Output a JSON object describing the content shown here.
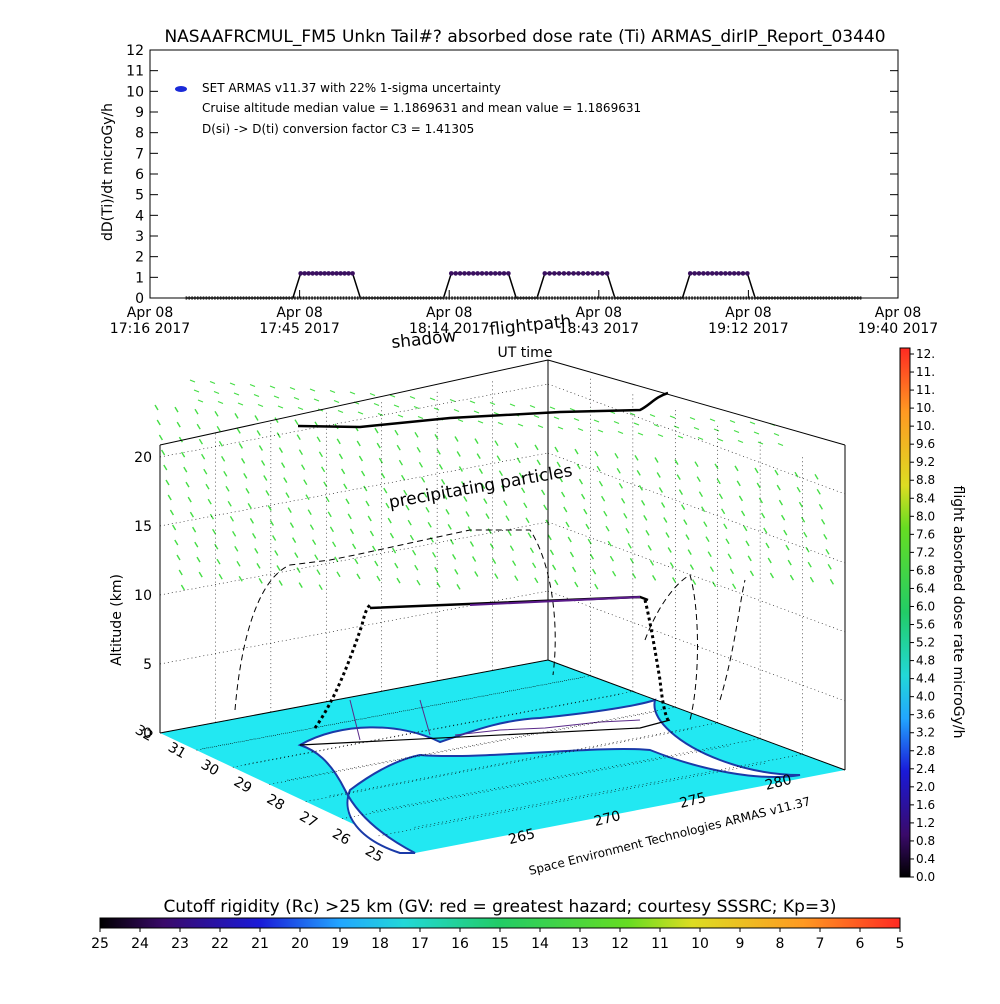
{
  "title": "NASAAFRCMUL_FM5 Unkn Tail#? absorbed dose rate (Ti) ARMAS_dirIP_Report_03440",
  "chart_data": [
    {
      "type": "line",
      "ylabel": "dD(Ti)/dt microGy/h",
      "xlabel": "UT time",
      "ylim": [
        0,
        12
      ],
      "yticks": [
        "0",
        "1",
        "2",
        "3",
        "4",
        "5",
        "6",
        "7",
        "8",
        "9",
        "10",
        "11",
        "12"
      ],
      "xtick_labels": [
        [
          "Apr 08",
          "17:16 2017"
        ],
        [
          "Apr 08",
          "17:45 2017"
        ],
        [
          "Apr 08",
          "18:14 2017"
        ],
        [
          "Apr 08",
          "18:43 2017"
        ],
        [
          "Apr 08",
          "19:12 2017"
        ],
        [
          "Apr 08",
          "19:40 2017"
        ]
      ],
      "xlim_minutes_after_1716": [
        0,
        144
      ],
      "legend": [
        "SET ARMAS v11.37 with 22% 1-sigma uncertainty",
        "Cruise altitude median value = 1.1869631 and mean value = 1.1869631",
        "D(si) -> D(ti) conversion factor C3 = 1.41305"
      ],
      "series": [
        {
          "name": "SET ARMAS v11.37 with 22% 1-sigma uncertainty",
          "color": "#3a1060",
          "baseline": 0,
          "elevated_value": 1.19,
          "start_minute": 7,
          "end_minute": 137,
          "elevated_segments_minutes": [
            [
              29,
              39
            ],
            [
              58,
              69
            ],
            [
              76,
              88
            ],
            [
              104,
              115
            ]
          ]
        }
      ]
    },
    {
      "type": "3d-trajectory",
      "zlabel": "Altitude (km)",
      "zticks": [
        "0",
        "5",
        "10",
        "15",
        "20"
      ],
      "lat_ticks": [
        "32",
        "31",
        "30",
        "29",
        "28",
        "27",
        "26",
        "25"
      ],
      "lon_ticks": [
        "265",
        "270",
        "275",
        "280"
      ],
      "annotations": [
        "flightpath",
        "shadow",
        "precipitating particles"
      ],
      "footer": "Space Environment Technologies ARMAS v11.37",
      "cruise_altitude_km": 10
    },
    {
      "type": "colorbar",
      "label": "flight absorbed dose rate microGy/h",
      "ticks": [
        "12.",
        "11.",
        "11.",
        "10.",
        "10.",
        "9.6",
        "9.2",
        "8.8",
        "8.4",
        "8.0",
        "7.6",
        "7.2",
        "6.8",
        "6.4",
        "6.0",
        "5.6",
        "5.2",
        "4.8",
        "4.4",
        "4.0",
        "3.6",
        "3.2",
        "2.8",
        "2.4",
        "2.0",
        "1.6",
        "1.2",
        "0.8",
        "0.4",
        "0.0"
      ]
    },
    {
      "type": "colorbar",
      "label": "Cutoff rigidity (Rc) >25 km (GV: red = greatest hazard; courtesy SSSRC; Kp=3)",
      "ticks": [
        "25",
        "24",
        "23",
        "22",
        "21",
        "20",
        "19",
        "18",
        "17",
        "16",
        "15",
        "14",
        "13",
        "12",
        "11",
        "10",
        "9",
        "8",
        "7",
        "6",
        "5"
      ]
    }
  ],
  "colors": {
    "flight_dose_cmap": [
      "#000000",
      "#3a0a6a",
      "#1a1ad8",
      "#22a6ff",
      "#22d8d8",
      "#22cc66",
      "#66dd22",
      "#dddd22",
      "#ff9922",
      "#ff2a22"
    ],
    "rigidity_cmap": [
      "#000000",
      "#3a0a6a",
      "#1a1ad8",
      "#22a6ff",
      "#22d8d8",
      "#22cc66",
      "#66dd22",
      "#dddd22",
      "#ff9922",
      "#ff2a22"
    ],
    "particles": "#44dd44",
    "map_land": "#22e8f2",
    "map_edge": "#1a3aa8",
    "flight_track": "#000000",
    "flight_track_cruise": "#5a1a8a"
  }
}
